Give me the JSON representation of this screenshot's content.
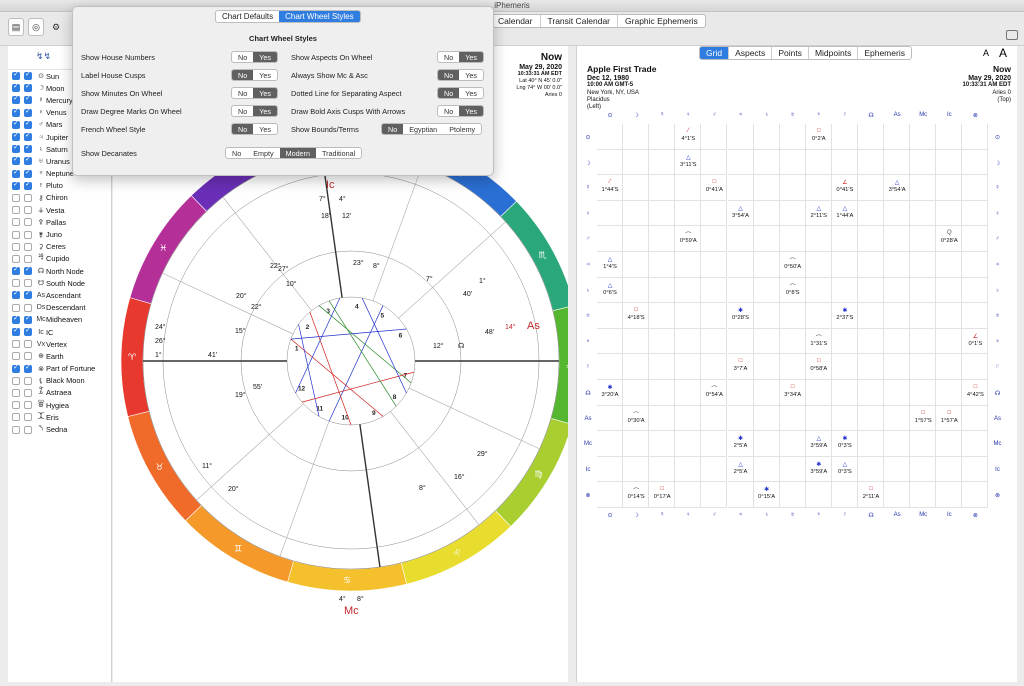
{
  "window": {
    "title": "iPhemeris"
  },
  "top_tabs": [
    "Calendar",
    "Transit Calendar",
    "Graphic Ephemeris"
  ],
  "popover": {
    "tabs": [
      {
        "label": "Chart Defaults",
        "selected": false
      },
      {
        "label": "Chart Wheel Styles",
        "selected": true
      }
    ],
    "title": "Chart Wheel Styles",
    "options": [
      {
        "label": "Show House Numbers",
        "choices": [
          "No",
          "Yes"
        ],
        "selected": "Yes"
      },
      {
        "label": "Label House Cusps",
        "choices": [
          "No",
          "Yes"
        ],
        "selected": "No"
      },
      {
        "label": "Show Minutes On Wheel",
        "choices": [
          "No",
          "Yes"
        ],
        "selected": "Yes"
      },
      {
        "label": "Draw Degree Marks On Wheel",
        "choices": [
          "No",
          "Yes"
        ],
        "selected": "Yes"
      },
      {
        "label": "French Wheel Style",
        "choices": [
          "No",
          "Yes"
        ],
        "selected": "No"
      },
      {
        "label": "Show Aspects On Wheel",
        "choices": [
          "No",
          "Yes"
        ],
        "selected": "Yes"
      },
      {
        "label": "Always Show Mc & Asc",
        "choices": [
          "No",
          "Yes"
        ],
        "selected": "No"
      },
      {
        "label": "Dotted Line for Separating Aspect",
        "choices": [
          "No",
          "Yes"
        ],
        "selected": "No"
      },
      {
        "label": "Draw Bold Axis Cusps With Arrows",
        "choices": [
          "No",
          "Yes"
        ],
        "selected": "Yes"
      },
      {
        "label": "Show Bounds/Terms",
        "choices": [
          "No",
          "Egyptian",
          "Ptolemy"
        ],
        "selected": "No"
      },
      {
        "label": "Show Decanates",
        "choices": [
          "No",
          "Empty",
          "Modern",
          "Traditional"
        ],
        "selected": "Modern"
      }
    ]
  },
  "sidebar": {
    "items": [
      {
        "label": "Sun",
        "glyph": "⊙",
        "a": true,
        "b": true
      },
      {
        "label": "Moon",
        "glyph": "☽",
        "a": true,
        "b": true
      },
      {
        "label": "Mercury",
        "glyph": "☿",
        "a": true,
        "b": true
      },
      {
        "label": "Venus",
        "glyph": "♀",
        "a": true,
        "b": true
      },
      {
        "label": "Mars",
        "glyph": "♂",
        "a": true,
        "b": true
      },
      {
        "label": "Jupiter",
        "glyph": "♃",
        "a": true,
        "b": true
      },
      {
        "label": "Saturn",
        "glyph": "♄",
        "a": true,
        "b": true
      },
      {
        "label": "Uranus",
        "glyph": "♅",
        "a": true,
        "b": true
      },
      {
        "label": "Neptune",
        "glyph": "♆",
        "a": true,
        "b": true
      },
      {
        "label": "Pluto",
        "glyph": "♇",
        "a": true,
        "b": true
      },
      {
        "label": "Chiron",
        "glyph": "⚷",
        "a": false,
        "b": false
      },
      {
        "label": "Vesta",
        "glyph": "⚶",
        "a": false,
        "b": false
      },
      {
        "label": "Pallas",
        "glyph": "⚴",
        "a": false,
        "b": false
      },
      {
        "label": "Juno",
        "glyph": "⚵",
        "a": false,
        "b": false
      },
      {
        "label": "Ceres",
        "glyph": "⚳",
        "a": false,
        "b": false
      },
      {
        "label": "Cupido",
        "glyph": "⯠",
        "a": false,
        "b": false
      },
      {
        "label": "North Node",
        "glyph": "☊",
        "a": true,
        "b": true
      },
      {
        "label": "South Node",
        "glyph": "☋",
        "a": false,
        "b": false
      },
      {
        "label": "Ascendant",
        "glyph": "As",
        "a": true,
        "b": true
      },
      {
        "label": "Descendant",
        "glyph": "Ds",
        "a": false,
        "b": false
      },
      {
        "label": "Midheaven",
        "glyph": "Mc",
        "a": true,
        "b": true
      },
      {
        "label": "IC",
        "glyph": "Ic",
        "a": true,
        "b": true
      },
      {
        "label": "Vertex",
        "glyph": "Vx",
        "a": false,
        "b": false
      },
      {
        "label": "Earth",
        "glyph": "⊕",
        "a": false,
        "b": false
      },
      {
        "label": "Part of Fortune",
        "glyph": "⊗",
        "a": true,
        "b": true
      },
      {
        "label": "Black Moon",
        "glyph": "⚸",
        "a": false,
        "b": false
      },
      {
        "label": "Astraea",
        "glyph": "⯙",
        "a": false,
        "b": false
      },
      {
        "label": "Hygiea",
        "glyph": "⯚",
        "a": false,
        "b": false
      },
      {
        "label": "Eris",
        "glyph": "⯰",
        "a": false,
        "b": false
      },
      {
        "label": "Sedna",
        "glyph": "⯲",
        "a": false,
        "b": false
      }
    ]
  },
  "left_header": {
    "title": "Now",
    "date": "May 29, 2020",
    "time": "10:33:31 AM EDT",
    "lat": "Lat 40° N 45' 0.0\"",
    "lng": "Lng 74° W 00' 0.0\"",
    "aries": "Aries 0"
  },
  "right_pane": {
    "tabs": [
      {
        "label": "Grid",
        "selected": true
      },
      {
        "label": "Aspects"
      },
      {
        "label": "Points"
      },
      {
        "label": "Midpoints"
      },
      {
        "label": "Ephemeris"
      }
    ],
    "left": {
      "title": "Apple First Trade",
      "date": "Dec 12, 1980",
      "time": "10:00 AM GMT-5",
      "place": "New York, NY, USA",
      "system": "Placidus",
      "extra": "(Left)"
    },
    "right": {
      "title": "Now",
      "date": "May 29, 2020",
      "time": "10:33:31 AM EDT",
      "aries": "Aries 0",
      "extra": "(Top)"
    },
    "font_small": "A",
    "font_large": "A",
    "col_glyphs": [
      "⊙",
      "☽",
      "☿",
      "♀",
      "♂",
      "♃",
      "♄",
      "♅",
      "♆",
      "♇",
      "☊",
      "As",
      "Mc",
      "Ic",
      "⊗"
    ],
    "row_glyphs": [
      "⊙",
      "☽",
      "☿",
      "♀",
      "♂",
      "♃",
      "♄",
      "♅",
      "♆",
      "♇",
      "☊",
      "As",
      "Mc",
      "Ic",
      "⊗"
    ],
    "cells": [
      {
        "r": 0,
        "c": 3,
        "sym": "⁄",
        "val": "4°1'S"
      },
      {
        "r": 0,
        "c": 8,
        "sym": "□",
        "val": "0°2'A"
      },
      {
        "r": 1,
        "c": 3,
        "sym": "△",
        "val": "3°11'S"
      },
      {
        "r": 2,
        "c": 0,
        "sym": "⁄",
        "val": "1°44'S"
      },
      {
        "r": 2,
        "c": 4,
        "sym": "□",
        "val": "0°41'A"
      },
      {
        "r": 2,
        "c": 9,
        "sym": "∠",
        "val": "0°41'S"
      },
      {
        "r": 2,
        "c": 11,
        "sym": "△",
        "val": "3°54'A"
      },
      {
        "r": 3,
        "c": 5,
        "sym": "△",
        "val": "3°54'A"
      },
      {
        "r": 3,
        "c": 8,
        "sym": "△",
        "val": "2°11'S"
      },
      {
        "r": 3,
        "c": 9,
        "sym": "△",
        "val": "1°44'A"
      },
      {
        "r": 4,
        "c": 3,
        "sym": "⌒",
        "val": "0°59'A"
      },
      {
        "r": 4,
        "c": 13,
        "sym": "Q",
        "val": "0°28'A"
      },
      {
        "r": 5,
        "c": 0,
        "sym": "△",
        "val": "1°4'S"
      },
      {
        "r": 5,
        "c": 7,
        "sym": "⌒",
        "val": "0°50'A"
      },
      {
        "r": 6,
        "c": 0,
        "sym": "△",
        "val": "0°6'S"
      },
      {
        "r": 6,
        "c": 7,
        "sym": "⌒",
        "val": "0°8'S"
      },
      {
        "r": 7,
        "c": 1,
        "sym": "□",
        "val": "4°18'S"
      },
      {
        "r": 7,
        "c": 5,
        "sym": "✱",
        "val": "0°28'S"
      },
      {
        "r": 7,
        "c": 9,
        "sym": "✱",
        "val": "2°37'S"
      },
      {
        "r": 8,
        "c": 8,
        "sym": "⌒",
        "val": "1°31'S"
      },
      {
        "r": 8,
        "c": 14,
        "sym": "∠",
        "val": "0°1'S"
      },
      {
        "r": 9,
        "c": 5,
        "sym": "□",
        "val": "3°7'A"
      },
      {
        "r": 9,
        "c": 8,
        "sym": "□",
        "val": "0°58'A"
      },
      {
        "r": 10,
        "c": 0,
        "sym": "✱",
        "val": "3°20'A"
      },
      {
        "r": 10,
        "c": 4,
        "sym": "⌒",
        "val": "0°54'A"
      },
      {
        "r": 10,
        "c": 7,
        "sym": "□",
        "val": "3°34'A"
      },
      {
        "r": 10,
        "c": 14,
        "sym": "□",
        "val": "4°42'S"
      },
      {
        "r": 11,
        "c": 1,
        "sym": "⌒",
        "val": "0°30'A"
      },
      {
        "r": 11,
        "c": 12,
        "sym": "□",
        "val": "1°57'S"
      },
      {
        "r": 11,
        "c": 13,
        "sym": "□",
        "val": "1°57'A"
      },
      {
        "r": 12,
        "c": 5,
        "sym": "✱",
        "val": "2°5'A"
      },
      {
        "r": 12,
        "c": 8,
        "sym": "△",
        "val": "3°59'A"
      },
      {
        "r": 12,
        "c": 9,
        "sym": "✱",
        "val": "0°3'S"
      },
      {
        "r": 13,
        "c": 5,
        "sym": "△",
        "val": "2°5'A"
      },
      {
        "r": 13,
        "c": 8,
        "sym": "✱",
        "val": "3°59'A"
      },
      {
        "r": 13,
        "c": 9,
        "sym": "△",
        "val": "0°3'S"
      },
      {
        "r": 14,
        "c": 1,
        "sym": "⌒",
        "val": "0°14'S"
      },
      {
        "r": 14,
        "c": 2,
        "sym": "□",
        "val": "0°17'A"
      },
      {
        "r": 14,
        "c": 6,
        "sym": "✱",
        "val": "0°15'A"
      },
      {
        "r": 14,
        "c": 10,
        "sym": "□",
        "val": "2°11'A"
      }
    ]
  },
  "wheel": {
    "signs": [
      "♈",
      "♉",
      "♊",
      "♋",
      "♌",
      "♍",
      "♎",
      "♏",
      "♐",
      "♑",
      "♒",
      "♓"
    ],
    "sign_colors": [
      "#e8392f",
      "#f06a2a",
      "#f59a2a",
      "#f4c12c",
      "#e8dd2e",
      "#a8cf2f",
      "#55b62f",
      "#2aa87a",
      "#2a6fd4",
      "#3b35c8",
      "#6a2fb6",
      "#b52f99"
    ],
    "house_numbers": [
      "1",
      "2",
      "3",
      "4",
      "5",
      "6",
      "7",
      "8",
      "9",
      "10",
      "11",
      "12"
    ],
    "labels": [
      {
        "t": "Ic",
        "color": "#c0282a"
      },
      {
        "t": "7°",
        "color": "#111"
      },
      {
        "t": "4°",
        "color": "#111"
      },
      {
        "t": "18'",
        "color": "#111"
      },
      {
        "t": "12'",
        "color": "#111"
      },
      {
        "t": "As",
        "color": "#c0282a"
      },
      {
        "t": "14°",
        "color": "#c0282a"
      },
      {
        "t": "Mc",
        "color": "#c0282a"
      },
      {
        "t": "4°",
        "color": "#111"
      },
      {
        "t": "8°",
        "color": "#111"
      },
      {
        "t": "12°",
        "color": "#111"
      },
      {
        "t": "☊",
        "color": "#111"
      },
      {
        "t": "19°",
        "color": "#111"
      },
      {
        "t": "15°",
        "color": "#111"
      },
      {
        "t": "24°",
        "color": "#111"
      },
      {
        "t": "26°",
        "color": "#111"
      },
      {
        "t": "1°",
        "color": "#111"
      },
      {
        "t": "22°",
        "color": "#111"
      },
      {
        "t": "27°",
        "color": "#111"
      },
      {
        "t": "10°",
        "color": "#111"
      },
      {
        "t": "20°",
        "color": "#111"
      },
      {
        "t": "22°",
        "color": "#111"
      },
      {
        "t": "23°",
        "color": "#111"
      },
      {
        "t": "8°",
        "color": "#111"
      },
      {
        "t": "7°",
        "color": "#111"
      },
      {
        "t": "1°",
        "color": "#111"
      },
      {
        "t": "29°",
        "color": "#111"
      },
      {
        "t": "16°",
        "color": "#111"
      },
      {
        "t": "8°",
        "color": "#111"
      },
      {
        "t": "20°",
        "color": "#111"
      },
      {
        "t": "11°",
        "color": "#111"
      },
      {
        "t": "40'",
        "color": "#111"
      },
      {
        "t": "48'",
        "color": "#111"
      },
      {
        "t": "41'",
        "color": "#111"
      },
      {
        "t": "55'",
        "color": "#111"
      }
    ]
  }
}
